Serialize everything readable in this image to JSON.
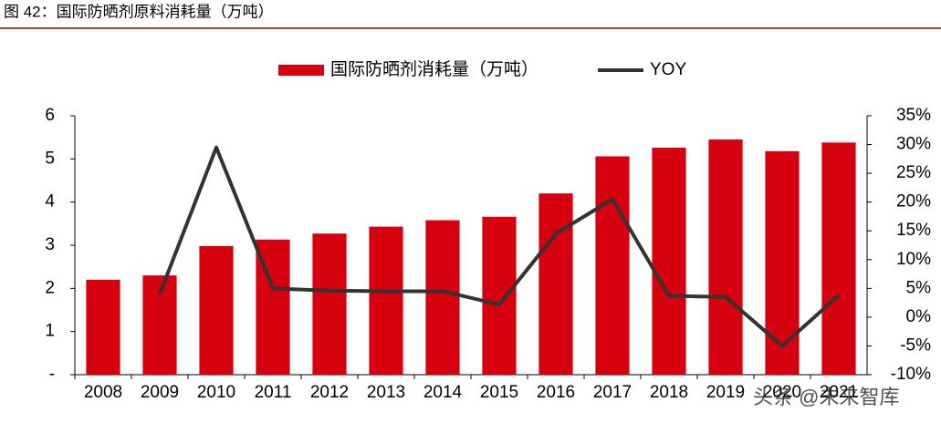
{
  "chart_data": {
    "type": "bar_line",
    "title": "图 42：国际防晒剂原料消耗量（万吨）",
    "categories": [
      "2008",
      "2009",
      "2010",
      "2011",
      "2012",
      "2013",
      "2014",
      "2015",
      "2016",
      "2017",
      "2018",
      "2019",
      "2020",
      "2021"
    ],
    "series": [
      {
        "name": "国际防晒剂消耗量（万吨）",
        "type": "bar",
        "color": "#d7000f",
        "values": [
          2.2,
          2.3,
          2.98,
          3.13,
          3.27,
          3.43,
          3.58,
          3.66,
          4.2,
          5.06,
          5.26,
          5.45,
          5.18,
          5.38
        ]
      },
      {
        "name": "YOY",
        "type": "line",
        "axis": "y2",
        "color": "#333333",
        "values": [
          null,
          4,
          29.5,
          5,
          4.6,
          4.5,
          4.5,
          2.2,
          14.5,
          20.5,
          3.7,
          3.5,
          -5,
          3.8
        ]
      }
    ],
    "ylim": [
      0,
      6
    ],
    "yticks": [
      {
        "value": 0,
        "label": "-"
      },
      1,
      2,
      3,
      4,
      5,
      6
    ],
    "y2lim": [
      -10,
      35
    ],
    "y2ticks": [
      {
        "value": -10,
        "label": "-10%"
      },
      {
        "value": -5,
        "label": "-5%"
      },
      {
        "value": 0,
        "label": "0%"
      },
      {
        "value": 5,
        "label": "5%"
      },
      {
        "value": 10,
        "label": "10%"
      },
      {
        "value": 15,
        "label": "15%"
      },
      {
        "value": 20,
        "label": "20%"
      },
      {
        "value": 25,
        "label": "25%"
      },
      {
        "value": 30,
        "label": "30%"
      },
      {
        "value": 35,
        "label": "35%"
      }
    ],
    "legend": "top",
    "watermark": "头条 @未来智库"
  }
}
